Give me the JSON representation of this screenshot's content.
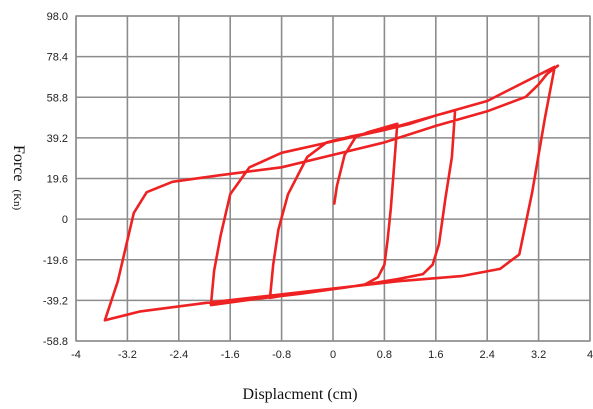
{
  "chart_data": {
    "type": "line",
    "title": "",
    "xlabel": "Displacment (cm)",
    "ylabel": "Force",
    "ylabel_unit": "(Kn)",
    "xlim": [
      -4,
      4
    ],
    "ylim": [
      -58.8,
      98.0
    ],
    "grid": true,
    "x_ticks": [
      -4,
      -3.2,
      -2.4,
      -1.6,
      -0.8,
      0,
      0.8,
      1.6,
      2.4,
      3.2,
      4
    ],
    "x_tick_labels": [
      "-4",
      "-3.2",
      "-2.4",
      "-1.6",
      "-0.8",
      "0",
      "0.8",
      "1.6",
      "2.4",
      "3.2",
      "4"
    ],
    "y_ticks": [
      98.0,
      78.4,
      58.8,
      39.2,
      19.6,
      0,
      -19.6,
      -39.2,
      -58.8
    ],
    "y_tick_labels": [
      "98.0",
      "78.4",
      "58.8",
      "39.2",
      "19.6",
      "0",
      "-19.6",
      "-39.2",
      "-58.8"
    ],
    "series": [
      {
        "color": "#ee2222",
        "x": [
          0.02,
          0.06,
          0.18,
          0.35,
          0.55,
          1.0,
          0.95,
          0.9,
          0.85,
          0.8,
          0.7,
          0.5,
          0.2,
          -0.3,
          -0.7,
          -0.98,
          -0.93,
          -0.85,
          -0.7,
          -0.4,
          -0.1,
          0.3,
          0.8,
          1.2,
          1.6,
          1.9,
          1.85,
          1.75,
          1.65,
          1.55,
          1.4,
          1.0,
          0.3,
          -0.5,
          -1.2,
          -1.9,
          -1.85,
          -1.75,
          -1.6,
          -1.3,
          -0.8,
          0.0,
          0.8,
          1.6,
          2.4,
          3.45,
          3.3,
          3.1,
          2.9,
          2.6,
          2.0,
          1.0,
          0.0,
          -1.0,
          -2.0,
          -3.0,
          -3.55,
          -3.35,
          -3.1,
          -2.9,
          -2.5,
          -1.8,
          -0.8,
          0.0,
          0.8,
          1.6,
          2.4,
          3.0,
          3.2,
          3.33,
          3.5
        ],
        "y": [
          7.5,
          16.0,
          31.0,
          39.5,
          42.0,
          46.0,
          25.0,
          5.0,
          -10.0,
          -22.0,
          -28.0,
          -31.5,
          -33.0,
          -35.0,
          -36.5,
          -38.0,
          -22.0,
          -5.0,
          12.0,
          30.0,
          37.0,
          40.0,
          43.0,
          46.0,
          50.0,
          52.5,
          30.0,
          10.0,
          -12.0,
          -22.0,
          -26.5,
          -29.0,
          -32.5,
          -36.0,
          -38.5,
          -41.5,
          -25.0,
          -8.0,
          12.0,
          25.0,
          32.0,
          37.5,
          43.0,
          50.0,
          57.0,
          73.5,
          49.0,
          13.0,
          -17.0,
          -24.0,
          -27.5,
          -30.0,
          -33.5,
          -37.0,
          -40.5,
          -44.5,
          -48.8,
          -30.0,
          3.0,
          13.0,
          18.0,
          21.0,
          25.0,
          31.0,
          37.0,
          45.0,
          52.0,
          59.0,
          65.0,
          70.0,
          74.0
        ]
      }
    ]
  }
}
